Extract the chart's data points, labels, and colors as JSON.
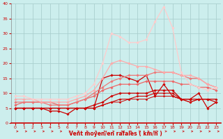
{
  "xlabel": "Vent moyen/en rafales ( km/h )",
  "xlim": [
    -0.5,
    23.5
  ],
  "ylim": [
    0,
    40
  ],
  "xticks": [
    0,
    1,
    2,
    3,
    4,
    5,
    6,
    7,
    8,
    9,
    10,
    11,
    12,
    13,
    14,
    15,
    16,
    17,
    18,
    19,
    20,
    21,
    22,
    23
  ],
  "yticks": [
    0,
    5,
    10,
    15,
    20,
    25,
    30,
    35,
    40
  ],
  "bg_color": "#cceeed",
  "grid_color": "#aacfcf",
  "series": [
    {
      "x": [
        0,
        1,
        2,
        3,
        4,
        5,
        6,
        7,
        8,
        9,
        10,
        11,
        12,
        13,
        14,
        15,
        16,
        17,
        18,
        19,
        20,
        21,
        22,
        23
      ],
      "y": [
        5,
        5,
        5,
        5,
        4,
        4,
        3,
        5,
        5,
        5,
        15,
        16,
        16,
        15,
        14,
        16,
        9,
        13,
        9,
        8,
        8,
        10,
        5,
        7
      ],
      "color": "#cc0000",
      "lw": 0.9,
      "marker": "D",
      "ms": 1.8
    },
    {
      "x": [
        0,
        1,
        2,
        3,
        4,
        5,
        6,
        7,
        8,
        9,
        10,
        11,
        12,
        13,
        14,
        15,
        16,
        17,
        18,
        19,
        20,
        21,
        22,
        23
      ],
      "y": [
        5,
        5,
        5,
        5,
        5,
        5,
        5,
        5,
        5,
        6,
        7,
        9,
        10,
        10,
        10,
        10,
        11,
        11,
        11,
        8,
        8,
        8,
        8,
        7
      ],
      "color": "#cc0000",
      "lw": 0.9,
      "marker": "D",
      "ms": 1.8
    },
    {
      "x": [
        0,
        1,
        2,
        3,
        4,
        5,
        6,
        7,
        8,
        9,
        10,
        11,
        12,
        13,
        14,
        15,
        16,
        17,
        18,
        19,
        20,
        21,
        22,
        23
      ],
      "y": [
        5,
        5,
        5,
        5,
        5,
        5,
        5,
        5,
        5,
        5,
        6,
        7,
        8,
        8,
        9,
        9,
        10,
        10,
        10,
        8,
        7,
        8,
        8,
        8
      ],
      "color": "#cc0000",
      "lw": 0.8,
      "marker": "D",
      "ms": 1.6
    },
    {
      "x": [
        0,
        1,
        2,
        3,
        4,
        5,
        6,
        7,
        8,
        9,
        10,
        11,
        12,
        13,
        14,
        15,
        16,
        17,
        18,
        19,
        20,
        21,
        22,
        23
      ],
      "y": [
        5,
        5,
        5,
        5,
        5,
        5,
        5,
        5,
        5,
        5,
        6,
        7,
        7,
        8,
        8,
        8,
        9,
        9,
        9,
        8,
        7,
        8,
        8,
        8
      ],
      "color": "#cc0000",
      "lw": 0.7,
      "marker": "D",
      "ms": 1.5
    },
    {
      "x": [
        0,
        1,
        2,
        3,
        4,
        5,
        6,
        7,
        8,
        9,
        10,
        11,
        12,
        13,
        14,
        15,
        16,
        17,
        18,
        19,
        20,
        21,
        22,
        23
      ],
      "y": [
        6,
        7,
        7,
        7,
        7,
        6,
        6,
        7,
        8,
        9,
        11,
        12,
        13,
        13,
        13,
        14,
        14,
        14,
        14,
        13,
        13,
        12,
        12,
        11
      ],
      "color": "#ee6666",
      "lw": 0.9,
      "marker": "D",
      "ms": 1.8
    },
    {
      "x": [
        0,
        1,
        2,
        3,
        4,
        5,
        6,
        7,
        8,
        9,
        10,
        11,
        12,
        13,
        14,
        15,
        16,
        17,
        18,
        19,
        20,
        21,
        22,
        23
      ],
      "y": [
        7,
        7,
        7,
        7,
        6,
        6,
        6,
        7,
        8,
        10,
        12,
        14,
        15,
        16,
        16,
        16,
        17,
        17,
        17,
        16,
        15,
        15,
        13,
        12
      ],
      "color": "#ee7777",
      "lw": 0.9,
      "marker": "D",
      "ms": 1.8
    },
    {
      "x": [
        0,
        1,
        2,
        3,
        4,
        5,
        6,
        7,
        8,
        9,
        10,
        11,
        12,
        13,
        14,
        15,
        16,
        17,
        18,
        19,
        20,
        21,
        22,
        23
      ],
      "y": [
        8,
        8,
        8,
        7,
        7,
        7,
        7,
        8,
        9,
        11,
        15,
        20,
        21,
        20,
        19,
        19,
        18,
        17,
        17,
        16,
        16,
        15,
        13,
        12
      ],
      "color": "#ffaaaa",
      "lw": 0.9,
      "marker": "D",
      "ms": 1.8
    },
    {
      "x": [
        0,
        1,
        2,
        3,
        4,
        5,
        6,
        7,
        8,
        9,
        10,
        11,
        12,
        13,
        14,
        15,
        16,
        17,
        18,
        19,
        20,
        21,
        22,
        23
      ],
      "y": [
        9,
        9,
        8,
        8,
        8,
        8,
        8,
        9,
        10,
        13,
        20,
        30,
        29,
        27,
        27,
        28,
        34,
        39,
        32,
        17,
        13,
        12,
        11,
        12
      ],
      "color": "#ffcccc",
      "lw": 0.9,
      "marker": "D",
      "ms": 1.8
    }
  ],
  "arrow_color": "#cc3333",
  "spine_bottom_color": "#cc0000"
}
